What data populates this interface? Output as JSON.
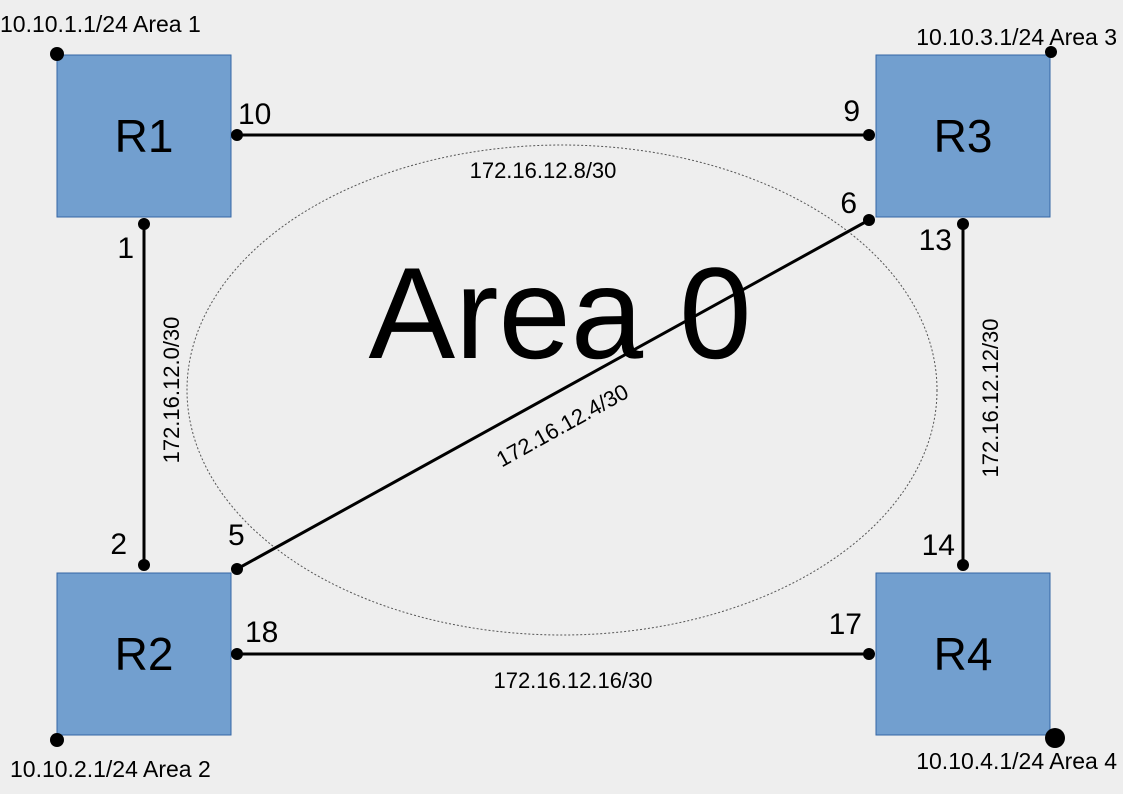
{
  "diagram": {
    "area0": {
      "label": "Area 0",
      "label_color": "#c8c8c8"
    },
    "colors": {
      "router_fill": "#729fcf",
      "router_stroke": "#3465a4",
      "link": "#000000"
    },
    "routers": [
      {
        "id": "r1",
        "label": "R1",
        "lan": "10.10.1.1/24 Area 1"
      },
      {
        "id": "r2",
        "label": "R2",
        "lan": "10.10.2.1/24 Area 2"
      },
      {
        "id": "r3",
        "label": "R3",
        "lan": "10.10.3.1/24 Area 3"
      },
      {
        "id": "r4",
        "label": "R4",
        "lan": "10.10.4.1/24 Area 4"
      }
    ],
    "links": [
      {
        "id": "r1-r3",
        "subnet": "172.16.12.8/30",
        "a_iface": "10",
        "b_iface": "9"
      },
      {
        "id": "r1-r2",
        "subnet": "172.16.12.0/30",
        "a_iface": "1",
        "b_iface": "2"
      },
      {
        "id": "r2-r3",
        "subnet": "172.16.12.4/30",
        "a_iface": "5",
        "b_iface": "6"
      },
      {
        "id": "r3-r4",
        "subnet": "172.16.12.12/30",
        "a_iface": "13",
        "b_iface": "14"
      },
      {
        "id": "r2-r4",
        "subnet": "172.16.12.16/30",
        "a_iface": "18",
        "b_iface": "17"
      }
    ]
  }
}
